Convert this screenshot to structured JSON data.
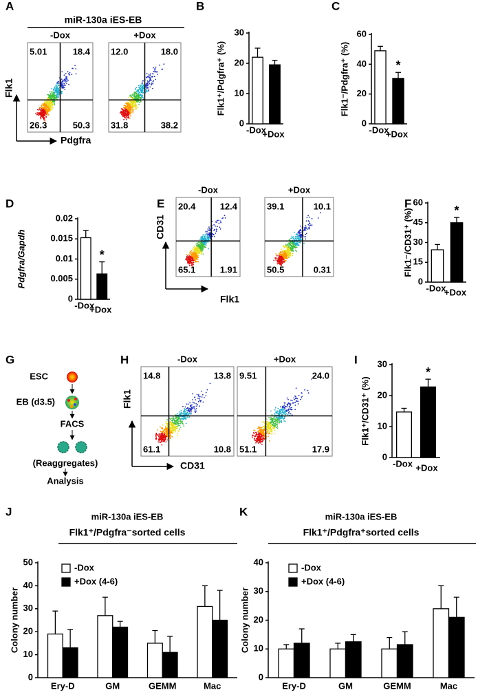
{
  "chart_data": [
    {
      "type": "flow",
      "panel": "A",
      "title": "miR-130a iES-EB",
      "x_label": "Pdgfra",
      "y_label": "Flk1",
      "plots": [
        {
          "name": "-Dox",
          "quadrants": [
            "5.01",
            "18.4",
            "26.3",
            "50.3"
          ]
        },
        {
          "name": "+Dox",
          "quadrants": [
            "12.0",
            "18.0",
            "31.8",
            "38.2"
          ]
        }
      ]
    },
    {
      "type": "bar",
      "panel": "B",
      "y_label": "Flk1⁺/Pdgfra⁺ (%)",
      "categories": [
        "-Dox",
        "+Dox"
      ],
      "values": [
        22,
        19.5
      ],
      "errors": [
        3,
        1.5
      ],
      "colors": [
        "#ffffff",
        "#000000"
      ],
      "ylim": [
        0,
        30
      ],
      "yticks": [
        0,
        10,
        20,
        30
      ]
    },
    {
      "type": "bar",
      "panel": "C",
      "y_label": "Flk1⁻/Pdgfra⁺ (%)",
      "categories": [
        "-Dox",
        "+Dox"
      ],
      "values": [
        49,
        30.5
      ],
      "errors": [
        3,
        4
      ],
      "colors": [
        "#ffffff",
        "#000000"
      ],
      "ylim": [
        0,
        60
      ],
      "yticks": [
        0,
        20,
        40,
        60
      ],
      "annotation": "*"
    },
    {
      "type": "bar",
      "panel": "D",
      "y_label": "Pdgfra/Gapdh",
      "categories": [
        "-Dox",
        "+Dox"
      ],
      "values": [
        0.0153,
        0.0063
      ],
      "errors": [
        0.0018,
        0.003
      ],
      "colors": [
        "#ffffff",
        "#000000"
      ],
      "ylim": [
        0,
        0.02
      ],
      "yticks": [
        0,
        0.005,
        0.01,
        0.015,
        0.02
      ],
      "annotation": "*"
    },
    {
      "type": "flow",
      "panel": "E",
      "x_label": "Flk1",
      "y_label": "CD31",
      "plots": [
        {
          "name": "-Dox",
          "quadrants": [
            "20.4",
            "12.4",
            "65.1",
            "1.91"
          ]
        },
        {
          "name": "+Dox",
          "quadrants": [
            "39.1",
            "10.1",
            "50.5",
            "0.31"
          ]
        }
      ]
    },
    {
      "type": "bar",
      "panel": "F",
      "y_label": "Flk1⁻/CD31⁺ (%)",
      "categories": [
        "-Dox",
        "+Dox"
      ],
      "values": [
        24.5,
        45
      ],
      "errors": [
        4,
        4
      ],
      "colors": [
        "#ffffff",
        "#000000"
      ],
      "ylim": [
        0,
        60
      ],
      "yticks": [
        0,
        15,
        30,
        45,
        60
      ],
      "annotation": "*"
    },
    {
      "type": "diagram",
      "panel": "G",
      "steps": [
        "ESC",
        "EB (d3.5)",
        "FACS",
        "(Reaggregates)",
        "Analysis"
      ]
    },
    {
      "type": "flow",
      "panel": "H",
      "x_label": "CD31",
      "y_label": "Flk1",
      "plots": [
        {
          "name": "-Dox",
          "quadrants": [
            "14.8",
            "13.8",
            "61.1",
            "10.8"
          ]
        },
        {
          "name": "+Dox",
          "quadrants": [
            "9.51",
            "24.0",
            "51.1",
            "17.9"
          ]
        }
      ]
    },
    {
      "type": "bar",
      "panel": "I",
      "y_label": "Flk1⁺/CD31⁺ (%)",
      "categories": [
        "-Dox",
        "+Dox"
      ],
      "values": [
        14.7,
        22.8
      ],
      "errors": [
        1.2,
        2.5
      ],
      "colors": [
        "#ffffff",
        "#000000"
      ],
      "ylim": [
        0,
        30
      ],
      "yticks": [
        0,
        10,
        20,
        30
      ],
      "annotation": "*"
    },
    {
      "type": "bar",
      "panel": "J",
      "title": "miR-130a iES-EB",
      "subtitle": "Flk1⁺/Pdgfra⁻sorted cells",
      "y_label": "Colony number",
      "categories": [
        "Ery-D",
        "GM",
        "GEMM",
        "Mac"
      ],
      "series": [
        {
          "name": "-Dox",
          "color": "#ffffff",
          "values": [
            19,
            27,
            15,
            31
          ],
          "errors": [
            10,
            8,
            5.5,
            9
          ]
        },
        {
          "name": "+Dox (4-6)",
          "color": "#000000",
          "values": [
            13,
            22,
            11,
            25
          ],
          "errors": [
            8,
            2.5,
            7,
            13
          ]
        }
      ],
      "ylim": [
        0,
        50
      ],
      "yticks": [
        0,
        10,
        20,
        30,
        40,
        50
      ]
    },
    {
      "type": "bar",
      "panel": "K",
      "title": "miR-130a iES-EB",
      "subtitle": "Flk1⁺/Pdgfra⁺sorted cells",
      "y_label": "Colony number",
      "categories": [
        "Ery-D",
        "GM",
        "GEMM",
        "Mac"
      ],
      "series": [
        {
          "name": "-Dox",
          "color": "#ffffff",
          "values": [
            10,
            10,
            10,
            24
          ],
          "errors": [
            1.5,
            2,
            4,
            8
          ]
        },
        {
          "name": "+Dox (4-6)",
          "color": "#000000",
          "values": [
            12,
            12.5,
            11.5,
            21
          ],
          "errors": [
            5,
            2.5,
            4.5,
            7
          ]
        }
      ],
      "ylim": [
        0,
        40
      ],
      "yticks": [
        0,
        10,
        20,
        30,
        40
      ]
    }
  ]
}
